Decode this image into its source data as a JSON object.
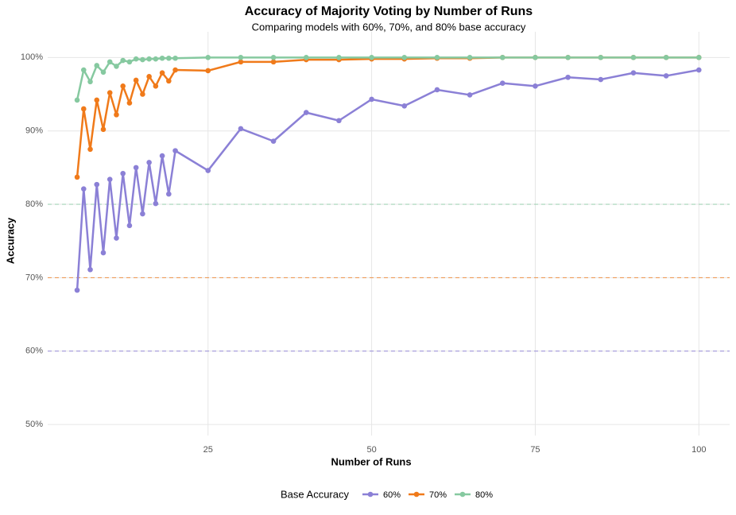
{
  "chart_data": {
    "type": "line",
    "title": "Accuracy of Majority Voting by Number of Runs",
    "subtitle": "Comparing models with 60%, 70%, and 80% base accuracy",
    "xlabel": "Number of Runs",
    "ylabel": "Accuracy",
    "legend_title": "Base Accuracy",
    "legend": "bottom",
    "grid": true,
    "x": [
      5,
      6,
      7,
      8,
      9,
      10,
      11,
      12,
      13,
      14,
      15,
      16,
      17,
      18,
      19,
      20,
      25,
      30,
      35,
      40,
      45,
      50,
      55,
      60,
      65,
      70,
      75,
      80,
      85,
      90,
      95,
      100
    ],
    "series": [
      {
        "name": "60%",
        "color": "#8b80d6",
        "values": [
          68.3,
          82.1,
          71.1,
          82.7,
          73.4,
          83.4,
          75.4,
          84.2,
          77.1,
          85.0,
          78.7,
          85.7,
          80.1,
          86.6,
          81.4,
          87.3,
          84.6,
          90.3,
          88.6,
          92.5,
          91.4,
          94.3,
          93.4,
          95.6,
          94.9,
          96.5,
          96.1,
          97.3,
          97.0,
          97.9,
          97.5,
          98.3
        ]
      },
      {
        "name": "70%",
        "color": "#f07a1a",
        "values": [
          83.7,
          93.0,
          87.5,
          94.2,
          90.2,
          95.2,
          92.2,
          96.1,
          93.8,
          96.9,
          95.0,
          97.4,
          96.1,
          97.9,
          96.8,
          98.3,
          98.2,
          99.4,
          99.4,
          99.7,
          99.7,
          99.8,
          99.8,
          99.9,
          99.9,
          100,
          100,
          100,
          100,
          100,
          100,
          100
        ]
      },
      {
        "name": "80%",
        "color": "#86c9a0",
        "values": [
          94.2,
          98.3,
          96.7,
          98.9,
          98.0,
          99.4,
          98.8,
          99.6,
          99.4,
          99.8,
          99.7,
          99.8,
          99.8,
          99.9,
          99.9,
          99.9,
          100,
          100,
          100,
          100,
          100,
          100,
          100,
          100,
          100,
          100,
          100,
          100,
          100,
          100,
          100,
          100
        ]
      }
    ],
    "reference_lines": [
      {
        "value": 60,
        "color": "#8b80d6"
      },
      {
        "value": 70,
        "color": "#f07a1a"
      },
      {
        "value": 80,
        "color": "#86c9a0"
      }
    ],
    "xlim": [
      0.5,
      104.7
    ],
    "xticks": [
      25,
      50,
      75,
      100
    ],
    "ylim": [
      48.5,
      103.5
    ],
    "yticks": [
      {
        "value": 50,
        "label": "50%"
      },
      {
        "value": 60,
        "label": "60%"
      },
      {
        "value": 70,
        "label": "70%"
      },
      {
        "value": 80,
        "label": "80%"
      },
      {
        "value": 90,
        "label": "90%"
      },
      {
        "value": 100,
        "label": "100%"
      }
    ]
  }
}
